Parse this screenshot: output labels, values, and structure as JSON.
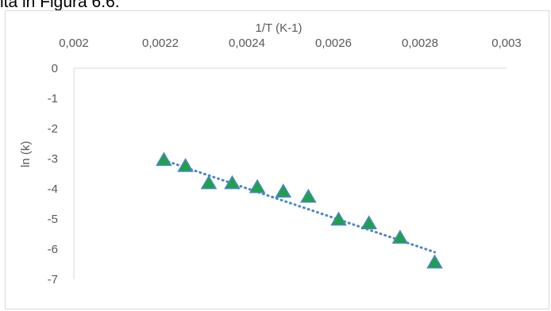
{
  "page": {
    "fragment_text": "ita in Figura 6.6."
  },
  "chart_data": {
    "type": "scatter",
    "title": "",
    "xlabel": "1/T (K-1)",
    "ylabel": "ln (k)",
    "xlim": [
      0.002,
      0.003
    ],
    "ylim": [
      -7,
      0
    ],
    "x_ticks": [
      "0,002",
      "0,0022",
      "0,0024",
      "0,0026",
      "0,0028",
      "0,003"
    ],
    "y_ticks": [
      "0",
      "-1",
      "-2",
      "-3",
      "-4",
      "-5",
      "-6",
      "-7"
    ],
    "x_axis_position": "top",
    "grid": false,
    "legend": "none",
    "series": [
      {
        "marker": "triangle",
        "marker_fill": "#1fa14b",
        "marker_edge": "#4a86c5",
        "x": [
          0.002208,
          0.002258,
          0.002312,
          0.002366,
          0.002424,
          0.002484,
          0.002542,
          0.002612,
          0.002682,
          0.002754,
          0.002834
        ],
        "y": [
          -3.05,
          -3.25,
          -3.82,
          -3.82,
          -3.95,
          -4.1,
          -4.27,
          -5.03,
          -5.15,
          -5.63,
          -6.45
        ]
      }
    ],
    "trendline": {
      "style": "dotted",
      "color": "#4a86c5",
      "x": [
        0.002208,
        0.002834
      ],
      "y": [
        -3.05,
        -6.1
      ]
    }
  }
}
